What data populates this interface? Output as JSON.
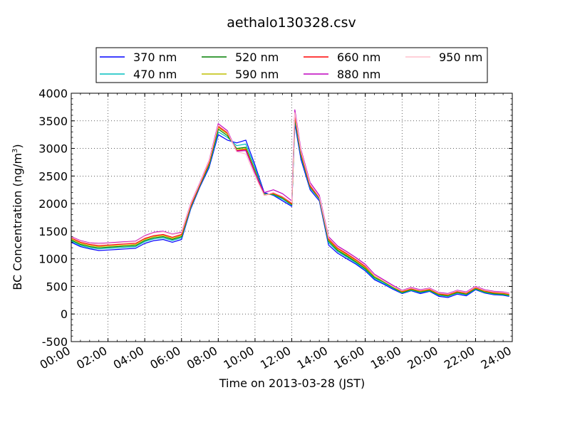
{
  "chart_data": {
    "type": "line",
    "title": "aethalo130328.csv",
    "xlabel": "Time on 2013-03-28 (JST)",
    "ylabel_main": "BC Concentration (ng/m",
    "ylabel_sup": "3",
    "ylabel_tail": ")",
    "xlim": [
      "00:00",
      "24:00"
    ],
    "ylim": [
      -500,
      4000
    ],
    "xticks": [
      "00:00",
      "02:00",
      "04:00",
      "06:00",
      "08:00",
      "10:00",
      "12:00",
      "14:00",
      "16:00",
      "18:00",
      "20:00",
      "22:00",
      "24:00"
    ],
    "yticks": [
      "-500",
      "0",
      "500",
      "1000",
      "1500",
      "2000",
      "2500",
      "3000",
      "3500",
      "4000"
    ],
    "grid": true,
    "legend_position": "top-center",
    "x": [
      "00:00",
      "00:30",
      "01:00",
      "01:30",
      "02:00",
      "02:30",
      "03:00",
      "03:30",
      "04:00",
      "04:30",
      "05:00",
      "05:30",
      "06:00",
      "06:30",
      "07:00",
      "07:30",
      "08:00",
      "08:30",
      "09:00",
      "09:30",
      "10:00",
      "10:30",
      "11:00",
      "11:30",
      "12:00",
      "12:10",
      "12:30",
      "13:00",
      "13:30",
      "14:00",
      "14:30",
      "15:00",
      "15:30",
      "16:00",
      "16:30",
      "17:00",
      "17:30",
      "18:00",
      "18:30",
      "19:00",
      "19:30",
      "20:00",
      "20:30",
      "21:00",
      "21:30",
      "22:00",
      "22:30",
      "23:00",
      "23:30",
      "23:50"
    ],
    "series": [
      {
        "name": "370 nm",
        "color": "#0000ff",
        "values": [
          1300,
          1220,
          1180,
          1150,
          1160,
          1170,
          1180,
          1190,
          1280,
          1330,
          1350,
          1300,
          1350,
          1900,
          2300,
          2650,
          3250,
          3150,
          3100,
          3150,
          2700,
          2200,
          2150,
          2050,
          1950,
          3450,
          2800,
          2250,
          2050,
          1250,
          1100,
          1000,
          900,
          780,
          620,
          540,
          450,
          370,
          420,
          370,
          410,
          320,
          300,
          360,
          330,
          440,
          380,
          350,
          340,
          320
        ]
      },
      {
        "name": "470 nm",
        "color": "#00bfbf",
        "values": [
          1320,
          1240,
          1200,
          1180,
          1190,
          1200,
          1210,
          1220,
          1310,
          1360,
          1380,
          1330,
          1380,
          1920,
          2320,
          2680,
          3300,
          3200,
          3050,
          3080,
          2650,
          2180,
          2160,
          2080,
          1970,
          3500,
          2850,
          2280,
          2080,
          1290,
          1130,
          1030,
          920,
          800,
          640,
          560,
          470,
          380,
          430,
          390,
          420,
          340,
          320,
          380,
          350,
          450,
          390,
          360,
          350,
          330
        ]
      },
      {
        "name": "520 nm",
        "color": "#007f00",
        "values": [
          1340,
          1260,
          1220,
          1200,
          1210,
          1220,
          1230,
          1240,
          1330,
          1380,
          1400,
          1350,
          1400,
          1940,
          2330,
          2700,
          3350,
          3230,
          3000,
          3020,
          2600,
          2170,
          2170,
          2100,
          1980,
          3550,
          2880,
          2300,
          2090,
          1320,
          1150,
          1050,
          940,
          820,
          660,
          580,
          480,
          390,
          440,
          400,
          430,
          350,
          330,
          390,
          360,
          460,
          400,
          370,
          360,
          340
        ]
      },
      {
        "name": "590 nm",
        "color": "#bfbf00",
        "values": [
          1360,
          1280,
          1240,
          1220,
          1230,
          1240,
          1250,
          1260,
          1350,
          1400,
          1420,
          1370,
          1420,
          1950,
          2340,
          2720,
          3380,
          3260,
          2980,
          3000,
          2580,
          2160,
          2180,
          2110,
          1990,
          3580,
          2900,
          2310,
          2100,
          1340,
          1170,
          1070,
          960,
          840,
          680,
          590,
          490,
          400,
          450,
          410,
          440,
          360,
          340,
          400,
          370,
          470,
          410,
          380,
          370,
          350
        ]
      },
      {
        "name": "660 nm",
        "color": "#ff0000",
        "values": [
          1380,
          1300,
          1260,
          1240,
          1250,
          1260,
          1270,
          1280,
          1370,
          1420,
          1440,
          1390,
          1440,
          1960,
          2350,
          2740,
          3400,
          3280,
          2960,
          2980,
          2560,
          2150,
          2190,
          2120,
          2000,
          3600,
          2920,
          2320,
          2110,
          1360,
          1190,
          1090,
          980,
          860,
          700,
          600,
          500,
          410,
          460,
          420,
          450,
          370,
          350,
          410,
          380,
          480,
          420,
          390,
          380,
          360
        ]
      },
      {
        "name": "880 nm",
        "color": "#bf00bf",
        "values": [
          1400,
          1330,
          1290,
          1280,
          1290,
          1300,
          1310,
          1320,
          1420,
          1480,
          1500,
          1450,
          1480,
          2000,
          2380,
          2780,
          3450,
          3320,
          2950,
          2960,
          2550,
          2200,
          2250,
          2180,
          2050,
          3700,
          2980,
          2380,
          2150,
          1400,
          1230,
          1130,
          1020,
          900,
          720,
          620,
          520,
          430,
          480,
          440,
          470,
          390,
          370,
          430,
          400,
          500,
          440,
          410,
          400,
          380
        ]
      },
      {
        "name": "950 nm",
        "color": "#ffc0cb",
        "values": [
          1390,
          1320,
          1280,
          1270,
          1280,
          1290,
          1300,
          1310,
          1410,
          1470,
          1490,
          1440,
          1470,
          1990,
          2370,
          2770,
          3420,
          3300,
          2940,
          2900,
          2500,
          2150,
          2200,
          2130,
          2020,
          3650,
          2950,
          2350,
          2120,
          1380,
          1210,
          1110,
          1000,
          880,
          700,
          600,
          500,
          420,
          470,
          430,
          460,
          380,
          360,
          420,
          390,
          490,
          430,
          400,
          390,
          370
        ]
      }
    ]
  }
}
